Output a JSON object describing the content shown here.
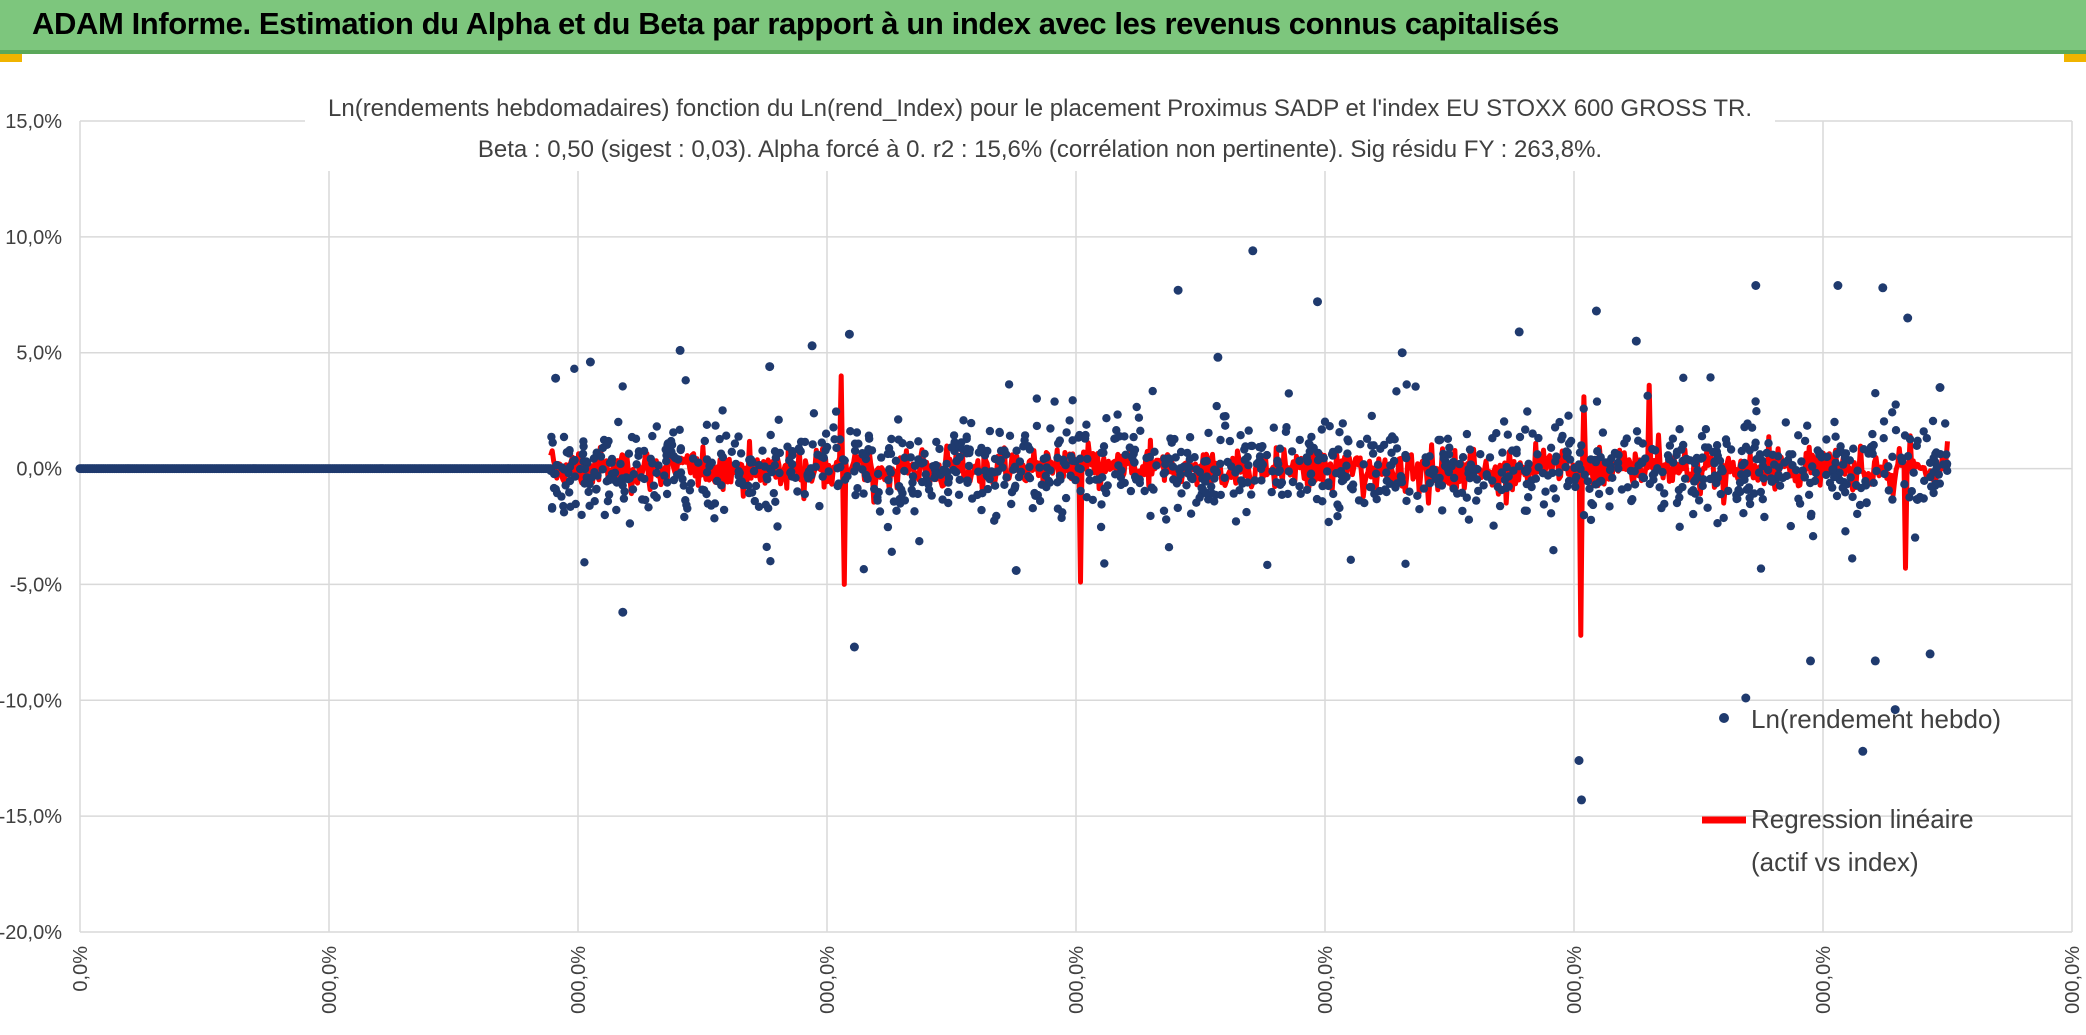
{
  "header": {
    "title": "ADAM Informe. Estimation du Alpha et du Beta par rapport à un index avec les revenus connus capitalisés"
  },
  "colors": {
    "header_bg": "#7dc67d",
    "scatter": "#1f3a6e",
    "regression": "#ff0000",
    "grid": "#d9d9d9",
    "text": "#404040"
  },
  "chart_data": {
    "type": "scatter",
    "title": "Ln(rendements hebdomadaires) fonction du Ln(rend_Index) pour le placement Proximus SADP et l'index EU STOXX 600 GROSS TR.",
    "subtitle": "Beta : 0,50 (sigest : 0,03). Alpha forcé à 0. r2 : 15,6% (corrélation non pertinente). Sig résidu FY : 263,8%.",
    "ylim": [
      -0.2,
      0.15
    ],
    "y_ticks": [
      "15,0%",
      "10,0%",
      "5,0%",
      "0,0%",
      "-5,0%",
      "-10,0%",
      "-15,0%",
      "-20,0%"
    ],
    "x_ticks": [
      "0,0%",
      "000,0%",
      "000,0%",
      "000,0%",
      "000,0%",
      "000,0%",
      "000,0%",
      "000,0%",
      "000,0%"
    ],
    "legend_position": "bottom-right",
    "legend": [
      {
        "name": "Ln(rendement hebdo)",
        "marker": "dot"
      },
      {
        "name_line1": "Regression linéaire",
        "name_line2": "(actif vs index)",
        "marker": "line"
      }
    ],
    "series": [
      {
        "name": "Ln(rendement hebdo)",
        "kind": "scatter",
        "segments": [
          {
            "x_start": 0.0,
            "x_end": 1.89,
            "y_const": 0.0,
            "count": 260
          },
          {
            "x_start": 1.89,
            "x_end": 7.5,
            "y_spread": 0.022,
            "count": 1200,
            "outliers": [
              [
                1.91,
                0.039
              ],
              [
                2.05,
                0.046
              ],
              [
                2.18,
                -0.062
              ],
              [
                2.41,
                0.051
              ],
              [
                2.77,
                0.044
              ],
              [
                2.94,
                0.053
              ],
              [
                3.09,
                0.058
              ],
              [
                3.11,
                -0.077
              ],
              [
                3.76,
                -0.044
              ],
              [
                4.41,
                0.077
              ],
              [
                4.57,
                0.048
              ],
              [
                4.71,
                0.094
              ],
              [
                4.97,
                0.072
              ],
              [
                5.31,
                0.05
              ],
              [
                5.78,
                0.059
              ],
              [
                6.02,
                -0.126
              ],
              [
                6.03,
                -0.143
              ],
              [
                6.09,
                0.068
              ],
              [
                6.25,
                0.055
              ],
              [
                6.69,
                -0.099
              ],
              [
                6.73,
                0.079
              ],
              [
                6.95,
                -0.083
              ],
              [
                7.06,
                0.079
              ],
              [
                7.16,
                -0.122
              ],
              [
                7.21,
                -0.083
              ],
              [
                7.24,
                0.078
              ],
              [
                7.29,
                -0.104
              ],
              [
                7.34,
                0.065
              ],
              [
                7.43,
                -0.08
              ],
              [
                7.47,
                0.035
              ]
            ]
          }
        ]
      },
      {
        "name": "Regression linéaire",
        "kind": "line",
        "beta": 0.5,
        "x_start": 1.89,
        "x_end": 7.5,
        "spikes": [
          [
            3.06,
            0.04
          ],
          [
            3.07,
            -0.05
          ],
          [
            4.02,
            -0.049
          ],
          [
            6.03,
            -0.072
          ],
          [
            6.04,
            0.031
          ],
          [
            6.3,
            0.036
          ],
          [
            7.33,
            -0.043
          ]
        ]
      }
    ]
  }
}
